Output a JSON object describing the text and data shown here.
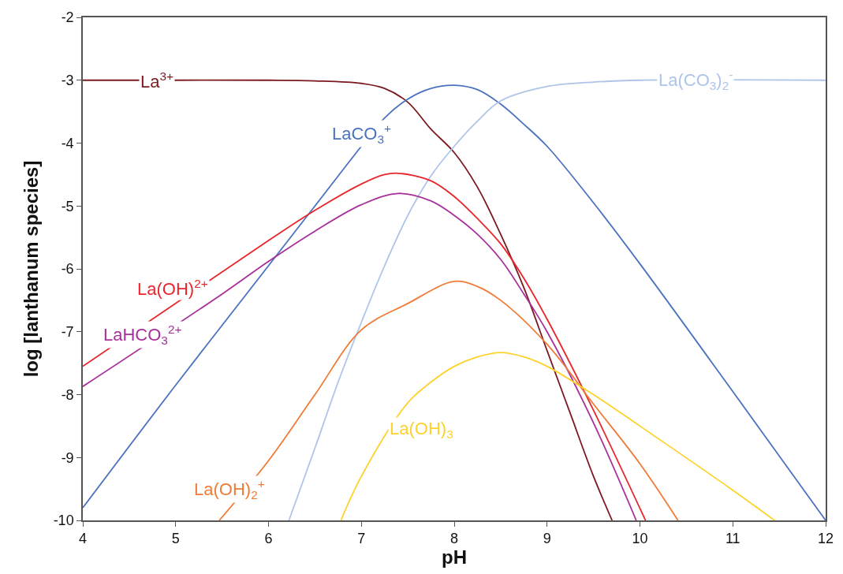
{
  "chart_data": {
    "type": "line",
    "xlabel": "pH",
    "ylabel": "log [lanthanum species]",
    "xlim": [
      4,
      12
    ],
    "xticks": [
      4,
      5,
      6,
      7,
      8,
      9,
      10,
      11,
      12
    ],
    "ylim": [
      -10,
      -2
    ],
    "yticks": [
      -10,
      -9,
      -8,
      -7,
      -6,
      -5,
      -4,
      -3,
      -2
    ],
    "legend": false,
    "marker": "none",
    "line_style": "solid",
    "series": [
      {
        "name": "La$^{3+}$",
        "color": "#7b1a1f",
        "x": [
          4,
          5,
          6,
          6.5,
          7,
          7.25,
          7.5,
          7.75,
          8,
          8.25,
          8.5,
          8.75,
          9,
          9.25,
          9.5,
          9.7
        ],
        "values": [
          -3,
          -3,
          -3,
          -3.01,
          -3.05,
          -3.13,
          -3.35,
          -3.78,
          -4.15,
          -4.7,
          -5.45,
          -6.3,
          -7.3,
          -8.3,
          -9.3,
          -10
        ]
      },
      {
        "name": "LaCO$_{3}$$^{+}$",
        "color": "#4a72c0",
        "x": [
          4,
          5,
          6,
          6.5,
          7,
          7.25,
          7.5,
          7.75,
          8,
          8.25,
          8.5,
          8.75,
          9,
          9.5,
          10,
          11,
          12
        ],
        "values": [
          -9.8,
          -7.85,
          -5.95,
          -5.0,
          -4.05,
          -3.6,
          -3.3,
          -3.13,
          -3.08,
          -3.15,
          -3.38,
          -3.7,
          -4.05,
          -4.95,
          -5.92,
          -7.95,
          -10
        ]
      },
      {
        "name": "La(CO$_{3}$)$_{2}$$^{-}$",
        "color": "#aec4e8",
        "x": [
          6.22,
          6.5,
          6.75,
          7,
          7.25,
          7.5,
          7.75,
          8,
          8.25,
          8.5,
          9,
          9.5,
          10,
          12
        ],
        "values": [
          -10,
          -8.85,
          -7.8,
          -6.85,
          -5.95,
          -5.15,
          -4.52,
          -4.05,
          -3.65,
          -3.33,
          -3.1,
          -3.03,
          -3.0,
          -3.0
        ]
      },
      {
        "name": "La(OH)$^{2+}$",
        "color": "#e8262b",
        "x": [
          4,
          5,
          6,
          6.5,
          7,
          7.25,
          7.4,
          7.75,
          8,
          8.25,
          8.5,
          8.75,
          9,
          9.5,
          10.06
        ],
        "values": [
          -7.55,
          -6.55,
          -5.55,
          -5.07,
          -4.65,
          -4.5,
          -4.48,
          -4.6,
          -4.85,
          -5.2,
          -5.6,
          -6.15,
          -6.8,
          -8.25,
          -10
        ]
      },
      {
        "name": "LaHCO$_{3}$$^{2+}$",
        "color": "#a8309a",
        "x": [
          4,
          5.5,
          6,
          6.5,
          7,
          7.4,
          7.75,
          8,
          8.25,
          8.5,
          8.75,
          9,
          9.5,
          9.96
        ],
        "values": [
          -7.87,
          -6.4,
          -5.88,
          -5.4,
          -4.98,
          -4.8,
          -4.92,
          -5.15,
          -5.45,
          -5.85,
          -6.4,
          -7.0,
          -8.45,
          -10
        ]
      },
      {
        "name": "La(OH)$_{2}$$^{+}$",
        "color": "#f07b36",
        "x": [
          5.47,
          6,
          6.5,
          7,
          7.5,
          8,
          8.25,
          8.5,
          9,
          9.5,
          10,
          10.41
        ],
        "values": [
          -10,
          -9.05,
          -8.0,
          -6.97,
          -6.55,
          -6.2,
          -6.28,
          -6.5,
          -7.2,
          -8.15,
          -9.1,
          -10
        ]
      },
      {
        "name": "La(OH)$_{3}$",
        "color": "#fdd22a",
        "x": [
          6.78,
          7,
          7.5,
          7.75,
          8,
          8.25,
          8.5,
          8.75,
          9,
          9.5,
          10,
          11,
          11.45
        ],
        "values": [
          -10,
          -9.3,
          -8.13,
          -7.8,
          -7.55,
          -7.4,
          -7.33,
          -7.4,
          -7.55,
          -8.0,
          -8.5,
          -9.52,
          -10
        ]
      }
    ]
  }
}
